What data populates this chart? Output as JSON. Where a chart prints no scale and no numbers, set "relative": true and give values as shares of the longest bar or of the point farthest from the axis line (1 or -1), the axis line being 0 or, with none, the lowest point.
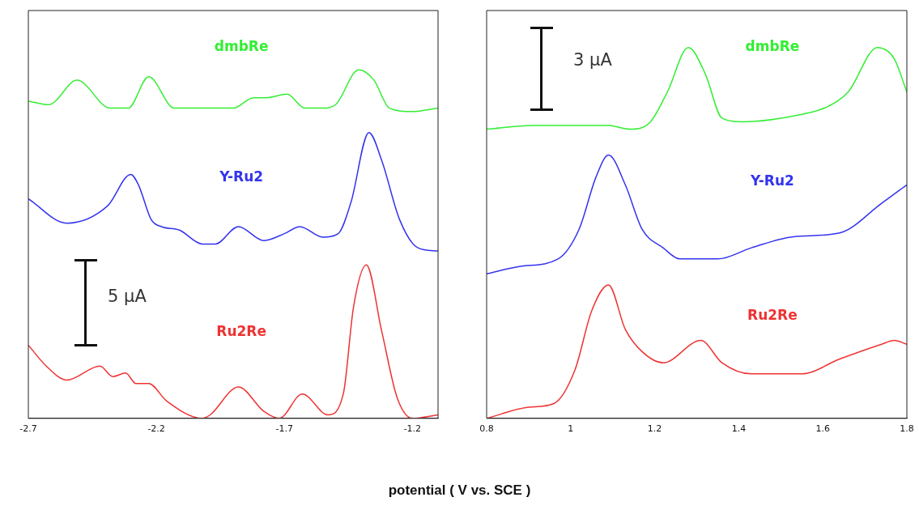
{
  "chart_data": [
    {
      "type": "line",
      "relative": true,
      "xlabel": "potential ( V vs. SCE )",
      "xlim": [
        -2.7,
        -1.1
      ],
      "xticks": [
        -2.7,
        -2.2,
        -1.7,
        -1.2
      ],
      "annotations": [
        "5 µA"
      ],
      "series": [
        {
          "name": "dmbRe",
          "color": "#33ee33",
          "x": [
            -2.7,
            -2.62,
            -2.51,
            -2.38,
            -2.31,
            -2.23,
            -2.13,
            -2.08,
            -1.9,
            -1.82,
            -1.77,
            -1.69,
            -1.62,
            -1.55,
            -1.5,
            -1.41,
            -1.35,
            -1.29,
            -1.2,
            -1.1
          ],
          "values": [
            0.91,
            0.9,
            0.97,
            0.89,
            0.89,
            0.98,
            0.89,
            0.89,
            0.89,
            0.92,
            0.92,
            0.93,
            0.89,
            0.89,
            0.9,
            1,
            0.97,
            0.89,
            0.88,
            0.89
          ]
        },
        {
          "name": "Y-Ru2",
          "color": "#3333ee",
          "x": [
            -2.7,
            -2.55,
            -2.39,
            -2.3,
            -2.27,
            -2.22,
            -2.18,
            -2.11,
            -2.02,
            -1.97,
            -1.88,
            -1.78,
            -1.7,
            -1.64,
            -1.55,
            -1.49,
            -1.44,
            -1.37,
            -1.32,
            -1.25,
            -1.18,
            -1.1
          ],
          "values": [
            0.63,
            0.56,
            0.61,
            0.7,
            0.67,
            0.57,
            0.55,
            0.54,
            0.5,
            0.5,
            0.55,
            0.51,
            0.53,
            0.55,
            0.52,
            0.53,
            0.62,
            0.82,
            0.74,
            0.57,
            0.49,
            0.48
          ]
        },
        {
          "name": "Ru2Re",
          "color": "#ee3333",
          "x": [
            -2.7,
            -2.63,
            -2.55,
            -2.42,
            -2.37,
            -2.32,
            -2.28,
            -2.23,
            -2.16,
            -2.02,
            -1.99,
            -1.88,
            -1.78,
            -1.72,
            -1.63,
            -1.53,
            -1.47,
            -1.43,
            -1.38,
            -1.32,
            -1.26,
            -1.2,
            -1.1
          ],
          "values": [
            0.21,
            0.15,
            0.11,
            0.15,
            0.12,
            0.13,
            0.1,
            0.1,
            0.05,
            0,
            0.01,
            0.09,
            0.02,
            0,
            0.07,
            0.01,
            0.07,
            0.32,
            0.44,
            0.25,
            0.06,
            0,
            0.01
          ]
        }
      ]
    },
    {
      "type": "line",
      "relative": true,
      "xlim": [
        0.8,
        1.8
      ],
      "xticks": [
        0.8,
        1,
        1.2,
        1.4,
        1.6,
        1.8
      ],
      "annotations": [
        "3 µA"
      ],
      "series": [
        {
          "name": "dmbRe",
          "color": "#33ee33",
          "x": [
            0.8,
            0.91,
            1.09,
            1.14,
            1.19,
            1.23,
            1.28,
            1.32,
            1.36,
            1.41,
            1.55,
            1.61,
            1.66,
            1.73,
            1.77,
            1.8
          ],
          "values": [
            0.78,
            0.79,
            0.79,
            0.78,
            0.8,
            0.88,
            1.0,
            0.93,
            0.81,
            0.8,
            0.82,
            0.84,
            0.88,
            1.0,
            0.97,
            0.88
          ]
        },
        {
          "name": "Y-Ru2",
          "color": "#3333ee",
          "x": [
            0.8,
            0.88,
            0.97,
            1.02,
            1.06,
            1.09,
            1.13,
            1.17,
            1.22,
            1.26,
            1.35,
            1.43,
            1.53,
            1.64,
            1.74,
            1.8
          ],
          "values": [
            0.39,
            0.41,
            0.43,
            0.51,
            0.65,
            0.71,
            0.63,
            0.51,
            0.46,
            0.43,
            0.43,
            0.46,
            0.49,
            0.5,
            0.58,
            0.63
          ]
        },
        {
          "name": "Ru2Re",
          "color": "#ee3333",
          "x": [
            0.8,
            0.9,
            0.96,
            1.01,
            1.05,
            1.09,
            1.13,
            1.17,
            1.22,
            1.31,
            1.36,
            1.43,
            1.55,
            1.64,
            1.74,
            1.77,
            1.8
          ],
          "values": [
            0,
            0.03,
            0.04,
            0.13,
            0.29,
            0.36,
            0.24,
            0.18,
            0.15,
            0.21,
            0.15,
            0.12,
            0.12,
            0.16,
            0.2,
            0.21,
            0.2
          ]
        }
      ]
    }
  ]
}
